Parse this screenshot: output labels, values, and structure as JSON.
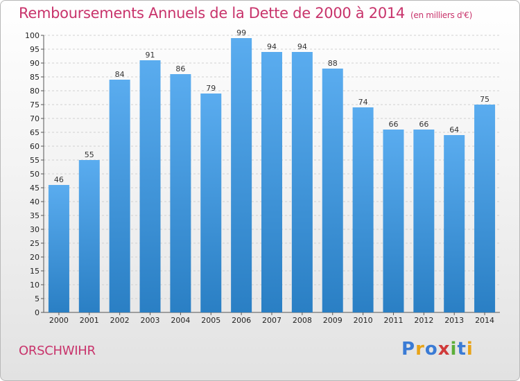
{
  "title": "Remboursements Annuels de la Dette de 2000 à 2014",
  "subtitle": "(en milliers d'€)",
  "city": "ORSCHWIHR",
  "logo": {
    "text": "Proxiti",
    "letters": [
      "P",
      "r",
      "o",
      "x",
      "i",
      "t",
      "i"
    ],
    "colors": [
      "#3a7bd5",
      "#e8a317",
      "#3a7bd5",
      "#d03a3a",
      "#5cae3a",
      "#3a7bd5",
      "#e8a317"
    ]
  },
  "colors": {
    "bar_light": "#5aacef",
    "bar_dark": "#2a7fc4",
    "title": "#c8336b"
  },
  "chart_data": {
    "type": "bar",
    "title": "Remboursements Annuels de la Dette de 2000 à 2014",
    "subtitle": "(en milliers d'€)",
    "categories": [
      "2000",
      "2001",
      "2002",
      "2003",
      "2004",
      "2005",
      "2006",
      "2007",
      "2008",
      "2009",
      "2010",
      "2011",
      "2012",
      "2013",
      "2014"
    ],
    "values": [
      46,
      55,
      84,
      91,
      86,
      79,
      99,
      94,
      94,
      88,
      74,
      66,
      66,
      64,
      75
    ],
    "ylim": [
      0,
      100
    ],
    "yticks": [
      0,
      5,
      10,
      15,
      20,
      25,
      30,
      35,
      40,
      45,
      50,
      55,
      60,
      65,
      70,
      75,
      80,
      85,
      90,
      95,
      100
    ],
    "grid": true,
    "xlabel": "",
    "ylabel": ""
  }
}
